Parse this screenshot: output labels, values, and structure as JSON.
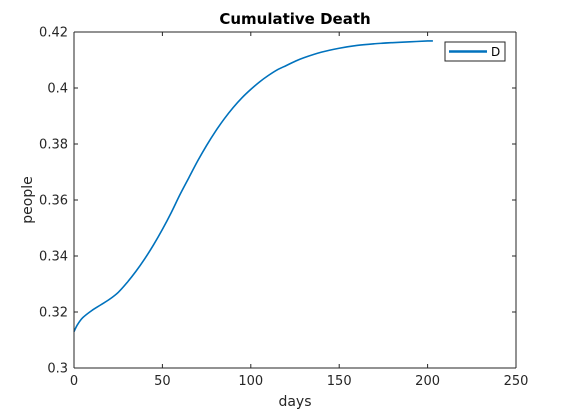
{
  "chart_data": {
    "type": "line",
    "title": "Cumulative Death",
    "xlabel": "days",
    "ylabel": "people",
    "xlim": [
      0,
      250
    ],
    "ylim": [
      0.3,
      0.42
    ],
    "xticks": [
      "0",
      "50",
      "100",
      "150",
      "200",
      "250"
    ],
    "yticks": [
      "0.3",
      "0.32",
      "0.34",
      "0.36",
      "0.38",
      "0.4",
      "0.42"
    ],
    "grid": false,
    "legend_position": "top-right",
    "series": [
      {
        "name": "D",
        "color": "#0072BD",
        "x": [
          0,
          2,
          5,
          10,
          15,
          20,
          25,
          30,
          35,
          40,
          45,
          50,
          55,
          60,
          65,
          70,
          75,
          80,
          85,
          90,
          95,
          100,
          105,
          110,
          115,
          120,
          125,
          130,
          140,
          150,
          160,
          170,
          180,
          190,
          200,
          203
        ],
        "y": [
          0.313,
          0.3155,
          0.318,
          0.3205,
          0.3225,
          0.3245,
          0.327,
          0.3305,
          0.3345,
          0.339,
          0.344,
          0.3495,
          0.3555,
          0.362,
          0.368,
          0.374,
          0.3795,
          0.3845,
          0.389,
          0.393,
          0.3965,
          0.3995,
          0.4022,
          0.4045,
          0.4065,
          0.408,
          0.4095,
          0.4108,
          0.4128,
          0.4142,
          0.4152,
          0.4158,
          0.4162,
          0.4165,
          0.4168,
          0.4168
        ]
      }
    ]
  }
}
